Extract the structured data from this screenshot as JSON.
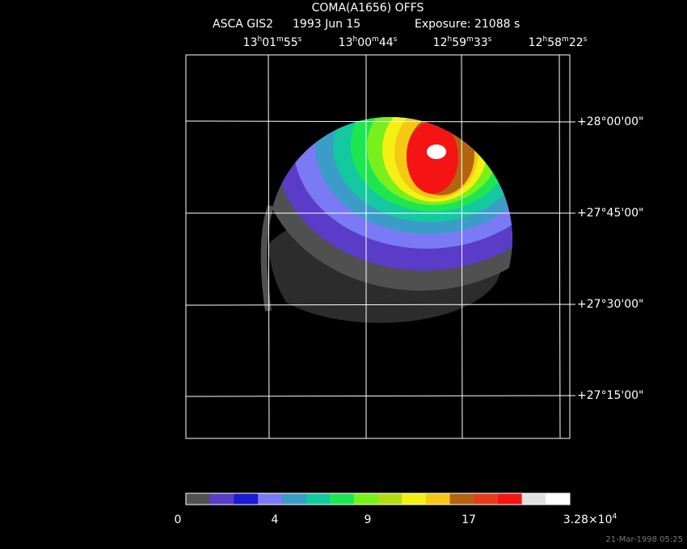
{
  "header": {
    "title": "COMA(A1656) OFFS",
    "instrument": "ASCA GIS2",
    "date": "1993 Jun 15",
    "exposure": "Exposure: 21088 s"
  },
  "ra_labels": [
    [
      "13",
      "h",
      "01",
      "m",
      "55",
      "s"
    ],
    [
      "13",
      "h",
      "00",
      "m",
      "44",
      "s"
    ],
    [
      "12",
      "h",
      "59",
      "m",
      "33",
      "s"
    ],
    [
      "12",
      "h",
      "58",
      "m",
      "22",
      "s"
    ]
  ],
  "dec_labels": [
    "+28°00'00\"",
    "+27°45'00\"",
    "+27°30'00\"",
    "+27°15'00\""
  ],
  "colorbar": {
    "colors": [
      "#505050",
      "#5a3cc8",
      "#1a1ad2",
      "#7a7af5",
      "#3c9cc8",
      "#14c8a0",
      "#1ee650",
      "#78f01e",
      "#b4dc14",
      "#f5f014",
      "#f5c814",
      "#b4640f",
      "#e63c1e",
      "#f51414",
      "#e1e1e1",
      "#ffffff"
    ],
    "labels": [
      [
        "0"
      ],
      [
        "4"
      ],
      [
        "9"
      ],
      [
        "17"
      ],
      [
        "3.28×10",
        "4"
      ]
    ]
  },
  "timestamp": "21-Mar-1998 05:25"
}
